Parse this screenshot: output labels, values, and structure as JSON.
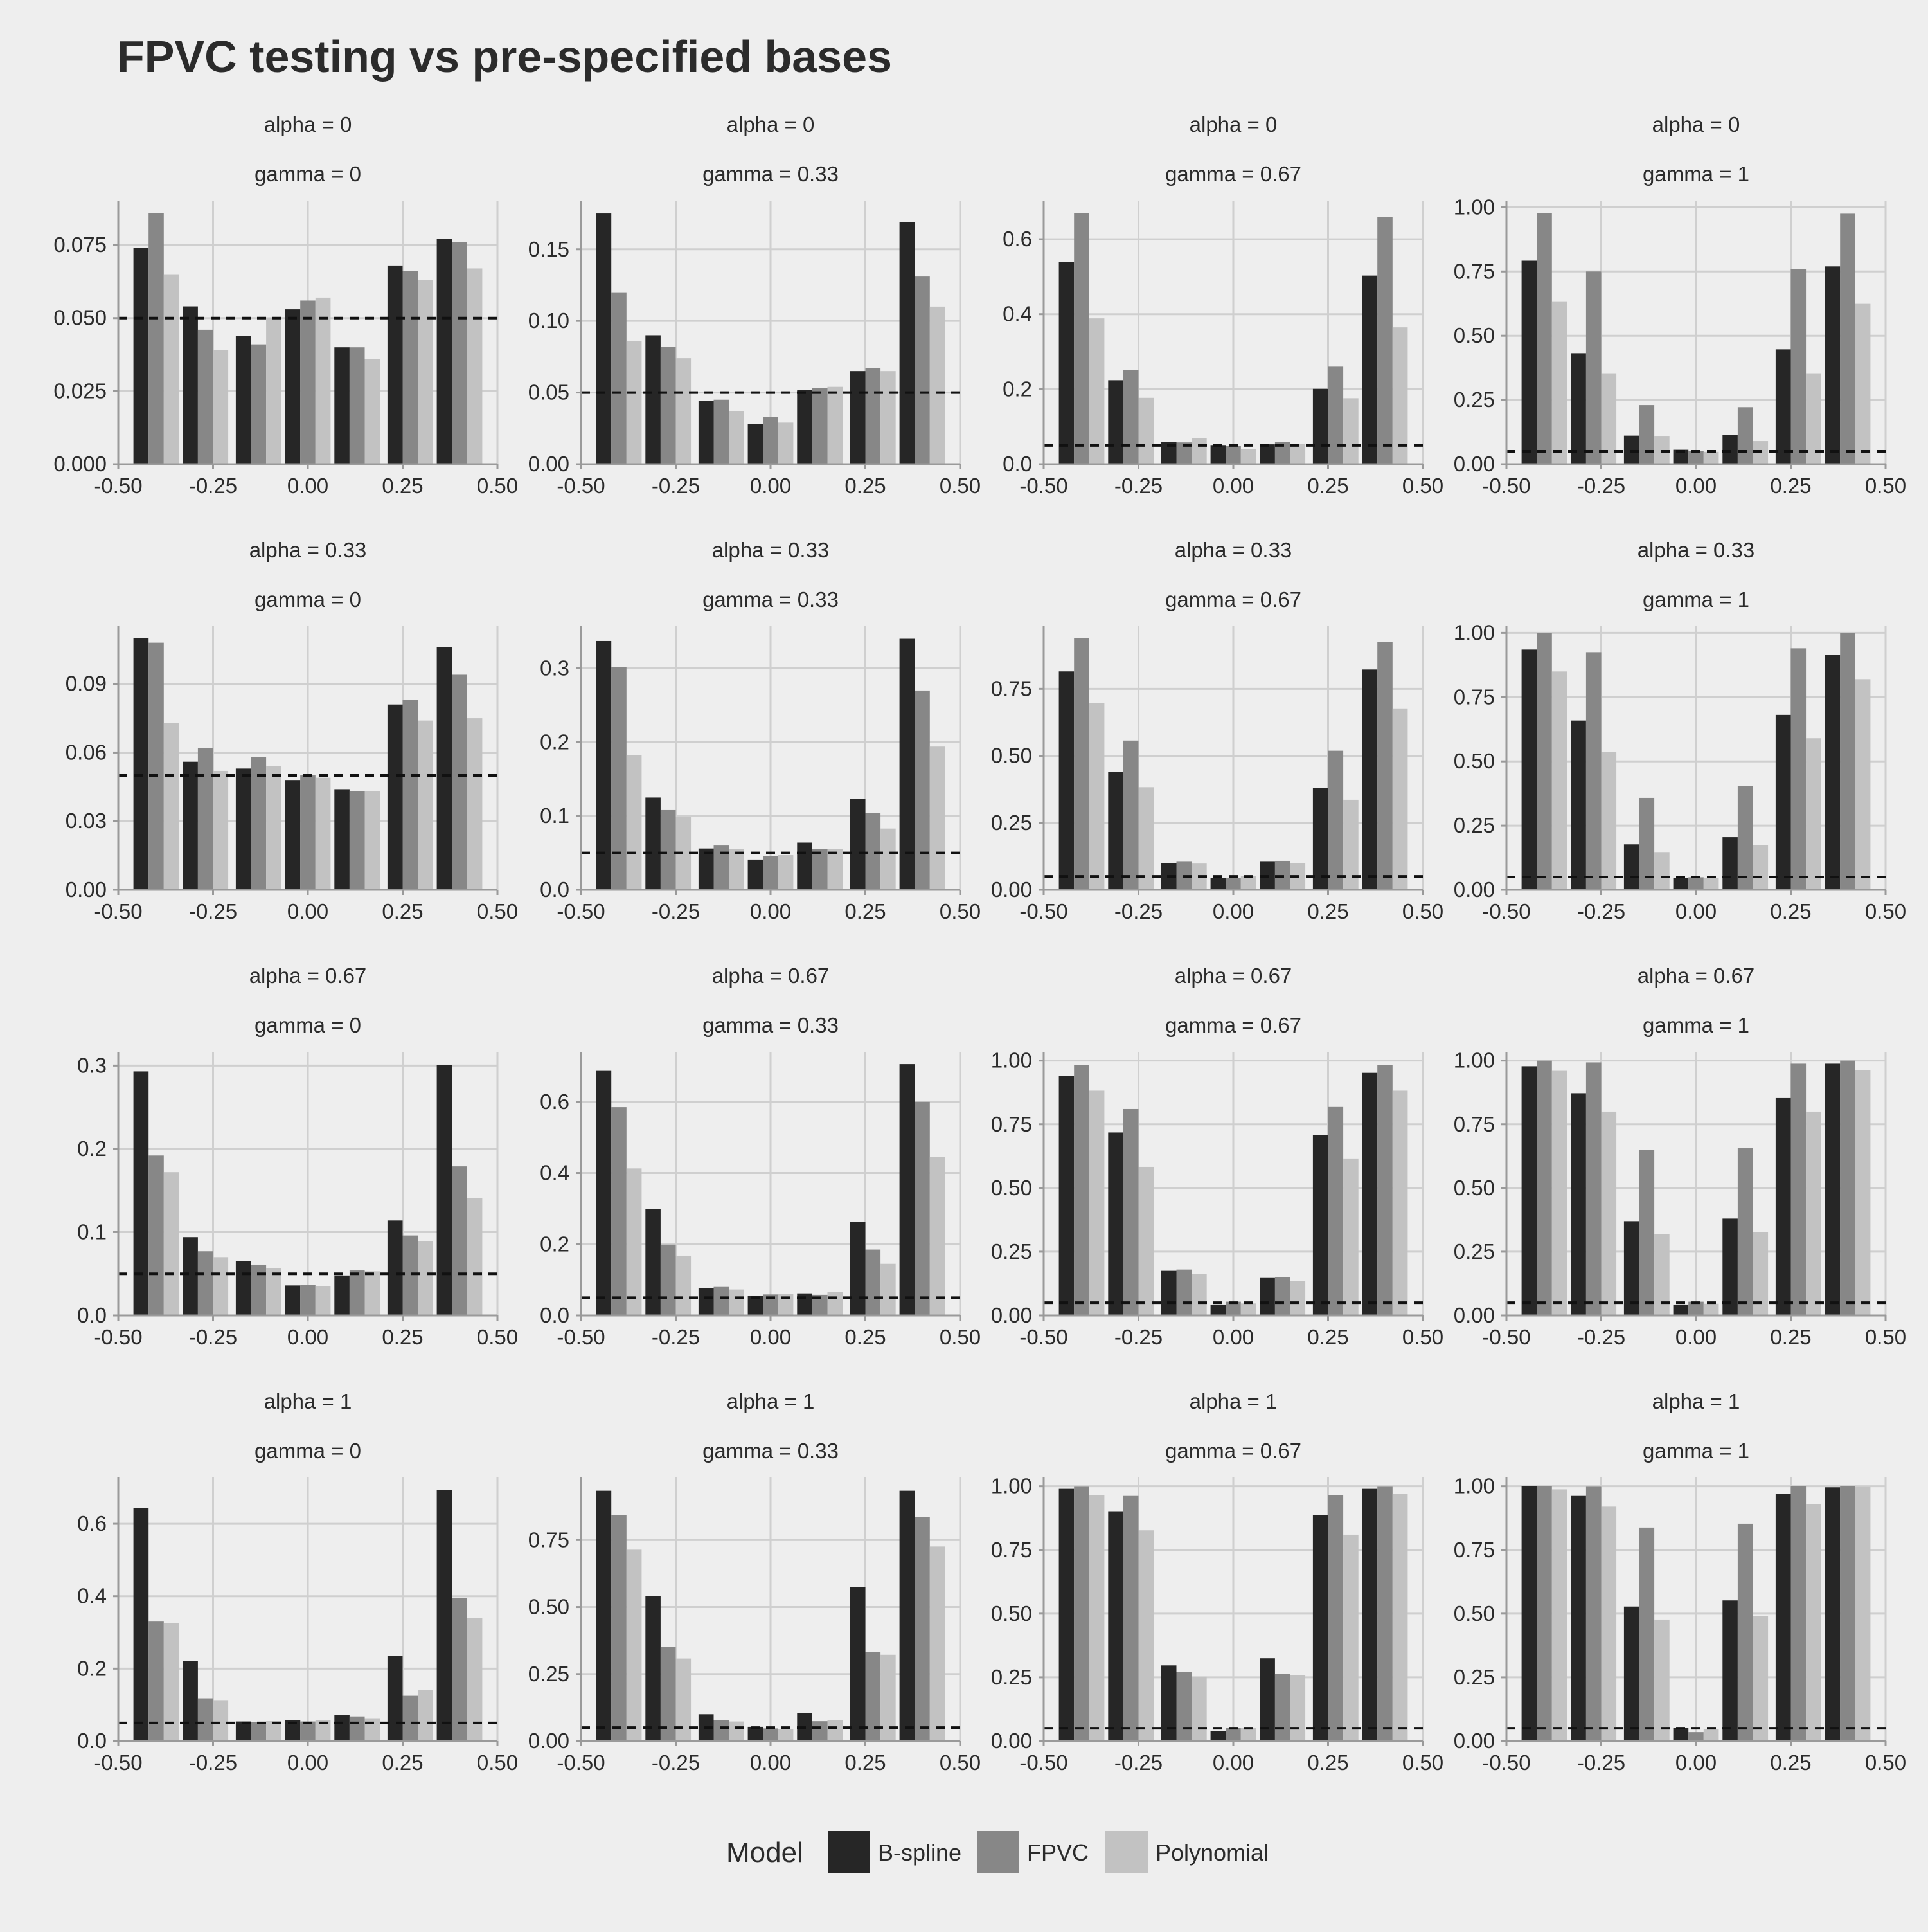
{
  "title": "FPVC testing vs pre-specified bases",
  "legend": {
    "title": "Model",
    "items": [
      {
        "label": "B-spline",
        "color": "#262626"
      },
      {
        "label": "FPVC",
        "color": "#878787"
      },
      {
        "label": "Polynomial",
        "color": "#c2c2c2"
      }
    ]
  },
  "chart_data": {
    "type": "bar",
    "facet_rows": 4,
    "facet_cols": 4,
    "x_ticks": [
      "-0.50",
      "-0.25",
      "0.00",
      "0.25",
      "0.50"
    ],
    "x_tick_values": [
      -0.5,
      -0.25,
      0,
      0.25,
      0.5
    ],
    "categories": [
      -0.4,
      -0.27,
      -0.13,
      0,
      0.13,
      0.27,
      0.4
    ],
    "series_names": [
      "B-spline",
      "FPVC",
      "Polynomial"
    ],
    "reference_line": 0.05,
    "grid": true,
    "legend_position": "bottom",
    "panels": [
      {
        "strip1": "alpha = 0",
        "strip2": "gamma = 0",
        "ylim": [
          0,
          0.0902
        ],
        "y_ticks": [
          "0.000",
          "0.025",
          "0.050",
          "0.075"
        ],
        "y_tick_values": [
          0,
          0.025,
          0.05,
          0.075
        ],
        "series": [
          [
            0.074,
            0.054,
            0.044,
            0.053,
            0.04,
            0.068,
            0.077
          ],
          [
            0.086,
            0.046,
            0.041,
            0.056,
            0.04,
            0.066,
            0.076
          ],
          [
            0.065,
            0.039,
            0.05,
            0.057,
            0.036,
            0.063,
            0.067
          ]
        ]
      },
      {
        "strip1": "alpha = 0",
        "strip2": "gamma = 0.33",
        "ylim": [
          0,
          0.184
        ],
        "y_ticks": [
          "0.00",
          "0.05",
          "0.10",
          "0.15"
        ],
        "y_tick_values": [
          0,
          0.05,
          0.1,
          0.15
        ],
        "series": [
          [
            0.175,
            0.09,
            0.044,
            0.028,
            0.052,
            0.065,
            0.169
          ],
          [
            0.12,
            0.082,
            0.045,
            0.033,
            0.053,
            0.067,
            0.131
          ],
          [
            0.086,
            0.074,
            0.037,
            0.029,
            0.054,
            0.065,
            0.11
          ]
        ]
      },
      {
        "strip1": "alpha = 0",
        "strip2": "gamma = 0.67",
        "ylim": [
          0,
          0.703
        ],
        "y_ticks": [
          "0.0",
          "0.2",
          "0.4",
          "0.6"
        ],
        "y_tick_values": [
          0,
          0.2,
          0.4,
          0.6
        ],
        "series": [
          [
            0.54,
            0.224,
            0.059,
            0.051,
            0.053,
            0.201,
            0.503
          ],
          [
            0.67,
            0.251,
            0.058,
            0.049,
            0.059,
            0.26,
            0.659
          ],
          [
            0.389,
            0.177,
            0.069,
            0.04,
            0.054,
            0.176,
            0.365
          ]
        ]
      },
      {
        "strip1": "alpha = 0",
        "strip2": "gamma = 1",
        "ylim": [
          0,
          1.026
        ],
        "y_ticks": [
          "0.00",
          "0.25",
          "0.50",
          "0.75",
          "1.00"
        ],
        "y_tick_values": [
          0,
          0.25,
          0.5,
          0.75,
          1.0
        ],
        "series": [
          [
            0.792,
            0.432,
            0.111,
            0.056,
            0.114,
            0.447,
            0.77
          ],
          [
            0.976,
            0.75,
            0.23,
            0.052,
            0.222,
            0.76,
            0.975
          ],
          [
            0.634,
            0.354,
            0.11,
            0.048,
            0.09,
            0.354,
            0.624
          ]
        ]
      },
      {
        "strip1": "alpha = 0.33",
        "strip2": "gamma = 0",
        "ylim": [
          0,
          0.1152
        ],
        "y_ticks": [
          "0.00",
          "0.03",
          "0.06",
          "0.09"
        ],
        "y_tick_values": [
          0,
          0.03,
          0.06,
          0.09
        ],
        "series": [
          [
            0.11,
            0.056,
            0.053,
            0.048,
            0.044,
            0.081,
            0.106
          ],
          [
            0.108,
            0.062,
            0.058,
            0.05,
            0.043,
            0.083,
            0.094
          ],
          [
            0.073,
            0.052,
            0.054,
            0.049,
            0.043,
            0.074,
            0.075
          ]
        ]
      },
      {
        "strip1": "alpha = 0.33",
        "strip2": "gamma = 0.33",
        "ylim": [
          0,
          0.357
        ],
        "y_ticks": [
          "0.0",
          "0.1",
          "0.2",
          "0.3"
        ],
        "y_tick_values": [
          0,
          0.1,
          0.2,
          0.3
        ],
        "series": [
          [
            0.337,
            0.125,
            0.056,
            0.041,
            0.064,
            0.123,
            0.34
          ],
          [
            0.302,
            0.108,
            0.06,
            0.046,
            0.055,
            0.104,
            0.27
          ],
          [
            0.182,
            0.099,
            0.055,
            0.047,
            0.055,
            0.083,
            0.194
          ]
        ]
      },
      {
        "strip1": "alpha = 0.33",
        "strip2": "gamma = 0.67",
        "ylim": [
          0,
          0.9835
        ],
        "y_ticks": [
          "0.00",
          "0.25",
          "0.50",
          "0.75"
        ],
        "y_tick_values": [
          0,
          0.25,
          0.5,
          0.75
        ],
        "series": [
          [
            0.815,
            0.44,
            0.1,
            0.045,
            0.107,
            0.381,
            0.822
          ],
          [
            0.938,
            0.557,
            0.107,
            0.045,
            0.108,
            0.519,
            0.925
          ],
          [
            0.696,
            0.383,
            0.098,
            0.051,
            0.099,
            0.336,
            0.677
          ]
        ]
      },
      {
        "strip1": "alpha = 0.33",
        "strip2": "gamma = 1",
        "ylim": [
          0,
          1.026
        ],
        "y_ticks": [
          "0.00",
          "0.25",
          "0.50",
          "0.75",
          "1.00"
        ],
        "y_tick_values": [
          0,
          0.25,
          0.5,
          0.75,
          1.0
        ],
        "series": [
          [
            0.935,
            0.659,
            0.177,
            0.047,
            0.205,
            0.681,
            0.915
          ],
          [
            0.999,
            0.925,
            0.358,
            0.049,
            0.404,
            0.94,
            0.999
          ],
          [
            0.85,
            0.538,
            0.147,
            0.047,
            0.173,
            0.59,
            0.82
          ]
        ]
      },
      {
        "strip1": "alpha = 0.67",
        "strip2": "gamma = 0",
        "ylim": [
          0,
          0.3165
        ],
        "y_ticks": [
          "0.0",
          "0.1",
          "0.2",
          "0.3"
        ],
        "y_tick_values": [
          0,
          0.1,
          0.2,
          0.3
        ],
        "series": [
          [
            0.293,
            0.094,
            0.065,
            0.036,
            0.048,
            0.114,
            0.301
          ],
          [
            0.192,
            0.077,
            0.061,
            0.037,
            0.054,
            0.096,
            0.179
          ],
          [
            0.172,
            0.07,
            0.057,
            0.035,
            0.053,
            0.089,
            0.141
          ]
        ]
      },
      {
        "strip1": "alpha = 0.67",
        "strip2": "gamma = 0.33",
        "ylim": [
          0,
          0.7405
        ],
        "y_ticks": [
          "0.0",
          "0.2",
          "0.4",
          "0.6"
        ],
        "y_tick_values": [
          0,
          0.2,
          0.4,
          0.6
        ],
        "series": [
          [
            0.687,
            0.299,
            0.076,
            0.056,
            0.062,
            0.263,
            0.706
          ],
          [
            0.585,
            0.199,
            0.08,
            0.059,
            0.058,
            0.185,
            0.6
          ],
          [
            0.413,
            0.168,
            0.073,
            0.061,
            0.065,
            0.145,
            0.445
          ]
        ]
      },
      {
        "strip1": "alpha = 0.67",
        "strip2": "gamma = 0.67",
        "ylim": [
          0,
          1.0345
        ],
        "y_ticks": [
          "0.00",
          "0.25",
          "0.50",
          "0.75",
          "1.00"
        ],
        "y_tick_values": [
          0,
          0.25,
          0.5,
          0.75,
          1.0
        ],
        "series": [
          [
            0.941,
            0.718,
            0.175,
            0.043,
            0.147,
            0.708,
            0.952
          ],
          [
            0.982,
            0.81,
            0.18,
            0.054,
            0.15,
            0.818,
            0.984
          ],
          [
            0.882,
            0.583,
            0.164,
            0.047,
            0.136,
            0.616,
            0.882
          ]
        ]
      },
      {
        "strip1": "alpha = 0.67",
        "strip2": "gamma = 1",
        "ylim": [
          0,
          1.0345
        ],
        "y_ticks": [
          "0.00",
          "0.25",
          "0.50",
          "0.75",
          "1.00"
        ],
        "y_tick_values": [
          0,
          0.25,
          0.5,
          0.75,
          1.0
        ],
        "series": [
          [
            0.978,
            0.872,
            0.37,
            0.043,
            0.38,
            0.853,
            0.988
          ],
          [
            1.0,
            0.993,
            0.65,
            0.054,
            0.656,
            0.988,
            1.0
          ],
          [
            0.96,
            0.8,
            0.318,
            0.046,
            0.326,
            0.8,
            0.963
          ]
        ]
      },
      {
        "strip1": "alpha = 1",
        "strip2": "gamma = 0",
        "ylim": [
          0,
          0.728
        ],
        "y_ticks": [
          "0.0",
          "0.2",
          "0.4",
          "0.6"
        ],
        "y_tick_values": [
          0,
          0.2,
          0.4,
          0.6
        ],
        "series": [
          [
            0.643,
            0.221,
            0.054,
            0.058,
            0.071,
            0.235,
            0.694
          ],
          [
            0.33,
            0.118,
            0.052,
            0.054,
            0.068,
            0.125,
            0.395
          ],
          [
            0.325,
            0.113,
            0.055,
            0.058,
            0.063,
            0.142,
            0.34
          ]
        ]
      },
      {
        "strip1": "alpha = 1",
        "strip2": "gamma = 0.33",
        "ylim": [
          0,
          0.9835
        ],
        "y_ticks": [
          "0.00",
          "0.25",
          "0.50",
          "0.75"
        ],
        "y_tick_values": [
          0,
          0.25,
          0.5,
          0.75
        ],
        "series": [
          [
            0.934,
            0.542,
            0.1,
            0.053,
            0.104,
            0.575,
            0.934
          ],
          [
            0.843,
            0.352,
            0.078,
            0.047,
            0.074,
            0.332,
            0.836
          ],
          [
            0.714,
            0.308,
            0.073,
            0.044,
            0.078,
            0.322,
            0.726
          ]
        ]
      },
      {
        "strip1": "alpha = 1",
        "strip2": "gamma = 0.67",
        "ylim": [
          0,
          1.0345
        ],
        "y_ticks": [
          "0.00",
          "0.25",
          "0.50",
          "0.75",
          "1.00"
        ],
        "y_tick_values": [
          0,
          0.25,
          0.5,
          0.75,
          1.0
        ],
        "series": [
          [
            0.99,
            0.902,
            0.297,
            0.038,
            0.325,
            0.888,
            0.99
          ],
          [
            0.998,
            0.962,
            0.272,
            0.051,
            0.264,
            0.965,
            0.998
          ],
          [
            0.965,
            0.827,
            0.253,
            0.051,
            0.258,
            0.81,
            0.97
          ]
        ]
      },
      {
        "strip1": "alpha = 1",
        "strip2": "gamma = 1",
        "ylim": [
          0,
          1.0345
        ],
        "y_ticks": [
          "0.00",
          "0.25",
          "0.50",
          "0.75",
          "1.00"
        ],
        "y_tick_values": [
          0,
          0.25,
          0.5,
          0.75,
          1.0
        ],
        "series": [
          [
            1.0,
            0.962,
            0.528,
            0.053,
            0.552,
            0.971,
            0.996
          ],
          [
            1.0,
            0.998,
            0.838,
            0.035,
            0.853,
            1.0,
            1.0
          ],
          [
            0.988,
            0.92,
            0.477,
            0.046,
            0.49,
            0.93,
            0.997
          ]
        ]
      }
    ]
  }
}
